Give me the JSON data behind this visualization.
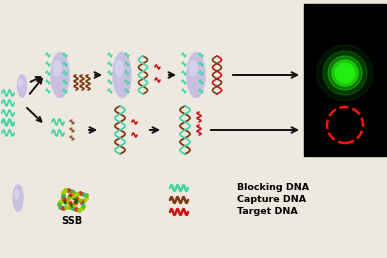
{
  "background": "#ede8e0",
  "legend_labels": [
    "Blocking DNA",
    "Capture DNA",
    "Target DNA"
  ],
  "ssb_label": "SSB",
  "bead_color_light": "#c8c0e0",
  "bead_color_dark": "#a898c8",
  "black_bg": "#000000",
  "green_circle": "#22ee11",
  "red_dashed_circle": "#ff1111",
  "arrow_color": "#111111",
  "wave_blocking": "#44d4a4",
  "wave_capture": "#7B3A10",
  "wave_target": "#cc1111",
  "figw": 3.87,
  "figh": 2.58,
  "dpi": 100
}
